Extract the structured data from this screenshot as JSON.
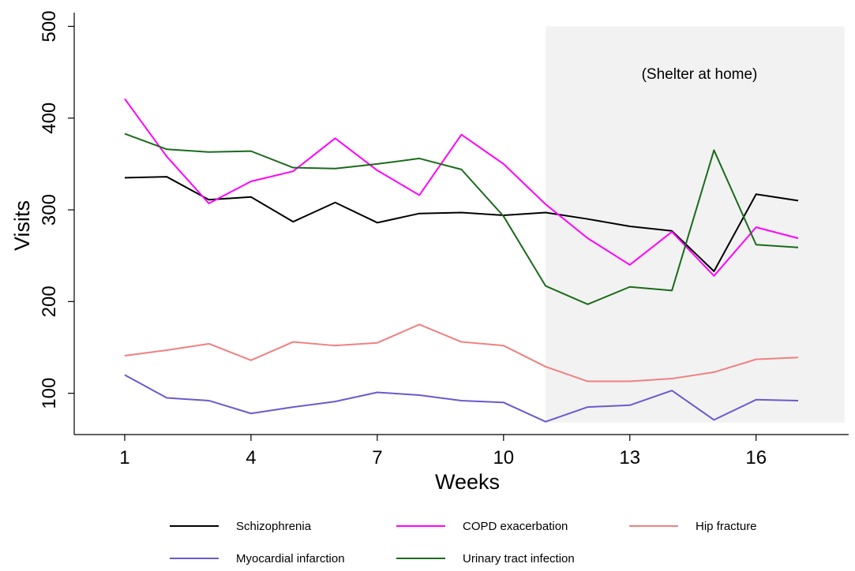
{
  "chart_data": {
    "type": "line",
    "title": "",
    "xlabel": "Weeks",
    "ylabel": "Visits",
    "xlim": [
      -0.2,
      18.2
    ],
    "ylim": [
      55,
      515
    ],
    "xticks": [
      1,
      4,
      7,
      10,
      13,
      16
    ],
    "yticks": [
      100,
      200,
      300,
      400,
      500
    ],
    "xtick_labels": [
      "1",
      "4",
      "7",
      "10",
      "13",
      "16"
    ],
    "ytick_labels": [
      "100",
      "200",
      "300",
      "400",
      "500"
    ],
    "grid": false,
    "legend_position": "bottom",
    "annotation": {
      "text": "(Shelter at home)",
      "shaded_x_range": [
        11,
        18.1
      ],
      "shaded_y_range": [
        68,
        500
      ],
      "shade_color": "#f2f2f2"
    },
    "x": [
      1,
      2,
      3,
      4,
      5,
      6,
      7,
      8,
      9,
      10,
      11,
      12,
      13,
      14,
      15,
      16,
      17
    ],
    "series": [
      {
        "name": "Schizophrenia",
        "color": "#000000",
        "values": [
          335,
          336,
          311,
          314,
          287,
          308,
          286,
          296,
          297,
          294,
          297,
          290,
          282,
          277,
          233,
          317,
          310
        ]
      },
      {
        "name": "COPD exacerbation",
        "color": "#ff00ff",
        "values": [
          421,
          358,
          307,
          331,
          342,
          378,
          343,
          316,
          382,
          350,
          306,
          269,
          240,
          276,
          228,
          281,
          269
        ]
      },
      {
        "name": "Hip fracture",
        "color": "#f08080",
        "values": [
          141,
          147,
          154,
          136,
          156,
          152,
          155,
          175,
          156,
          152,
          129,
          113,
          113,
          116,
          123,
          137,
          139
        ]
      },
      {
        "name": "Myocardial infarction",
        "color": "#6a5acd",
        "values": [
          120,
          95,
          92,
          78,
          85,
          91,
          101,
          98,
          92,
          90,
          69,
          85,
          87,
          103,
          71,
          93,
          92
        ]
      },
      {
        "name": "Urinary tract infection",
        "color": "#1a6b1a",
        "values": [
          383,
          366,
          363,
          364,
          346,
          345,
          350,
          356,
          344,
          293,
          217,
          197,
          216,
          212,
          365,
          262,
          259
        ]
      }
    ]
  }
}
